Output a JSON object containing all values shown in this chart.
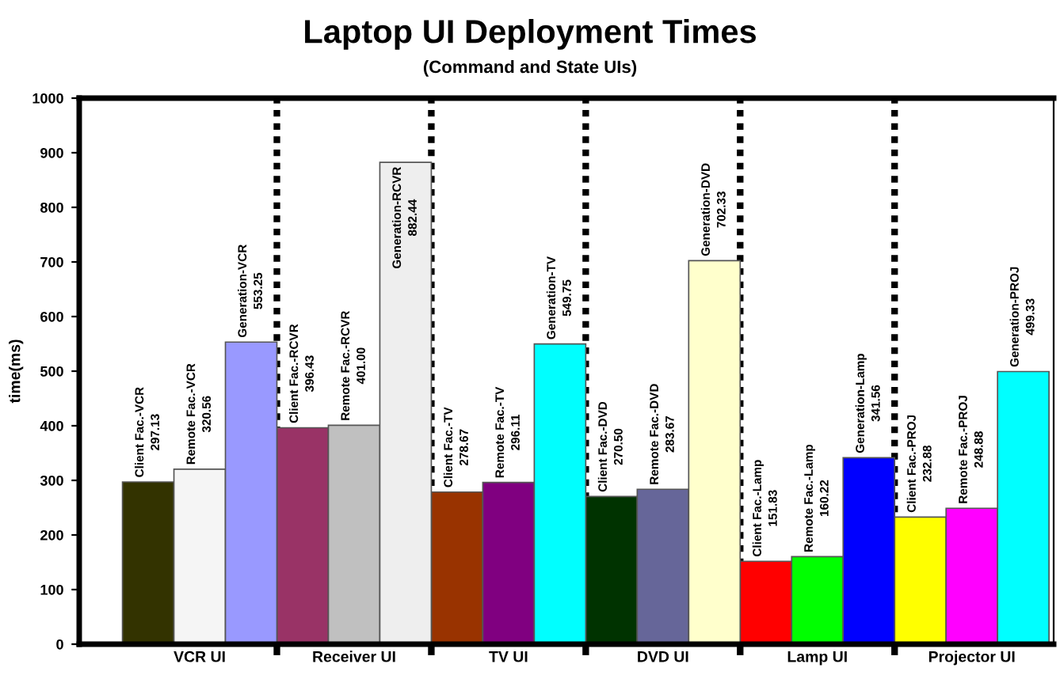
{
  "chart_data": {
    "type": "bar",
    "title": "Laptop UI Deployment Times",
    "subtitle": "(Command and State UIs)",
    "ylabel": "time(ms)",
    "categories": [
      "VCR UI",
      "Receiver UI",
      "TV UI",
      "DVD UI",
      "Lamp UI",
      "Projector UI"
    ],
    "series": [
      {
        "colors": [
          "#333300",
          "#993366",
          "#993300",
          "#003300",
          "#ff0000",
          "#ffff00"
        ],
        "values": [
          297.13,
          396.43,
          278.67,
          270.5,
          151.83,
          232.88
        ],
        "value_labels": [
          "Client Fac.-VCR\n297.13",
          "Client Fac.-RCVR\n396.43",
          "Client Fac.-TV\n278.67",
          "Client Fac.-DVD\n270.50",
          "Client Fac.-Lamp\n151.83",
          "Client Fac.-PROJ\n232.88"
        ]
      },
      {
        "colors": [
          "#f5f5f5",
          "#c0c0c0",
          "#800080",
          "#666699",
          "#00ff00",
          "#ff00ff"
        ],
        "values": [
          320.56,
          401.0,
          296.11,
          283.67,
          160.22,
          248.88
        ],
        "value_labels": [
          "Remote Fac.-VCR\n320.56",
          "Remote Fac.-RCVR\n401.00",
          "Remote Fac.-TV\n296.11",
          "Remote Fac.-DVD\n283.67",
          "Remote Fac.-Lamp\n160.22",
          "Remote Fac.-PROJ\n248.88"
        ]
      },
      {
        "colors": [
          "#9999ff",
          "#eeeeee",
          "#00ffff",
          "#ffffcc",
          "#0000ff",
          "#00ffff"
        ],
        "values": [
          553.25,
          882.44,
          549.75,
          702.33,
          341.56,
          499.33
        ],
        "value_labels": [
          "Generation-VCR\n553.25",
          "Generation-RCVR\n882.44",
          "Generation-TV\n549.75",
          "Generation-DVD\n702.33",
          "Generation-Lamp\n341.56",
          "Generation-PROJ\n499.33"
        ]
      }
    ],
    "ylim": [
      0,
      1000
    ],
    "yticks": [
      0,
      100,
      200,
      300,
      400,
      500,
      600,
      700,
      800,
      900,
      1000
    ],
    "grid": "x"
  }
}
